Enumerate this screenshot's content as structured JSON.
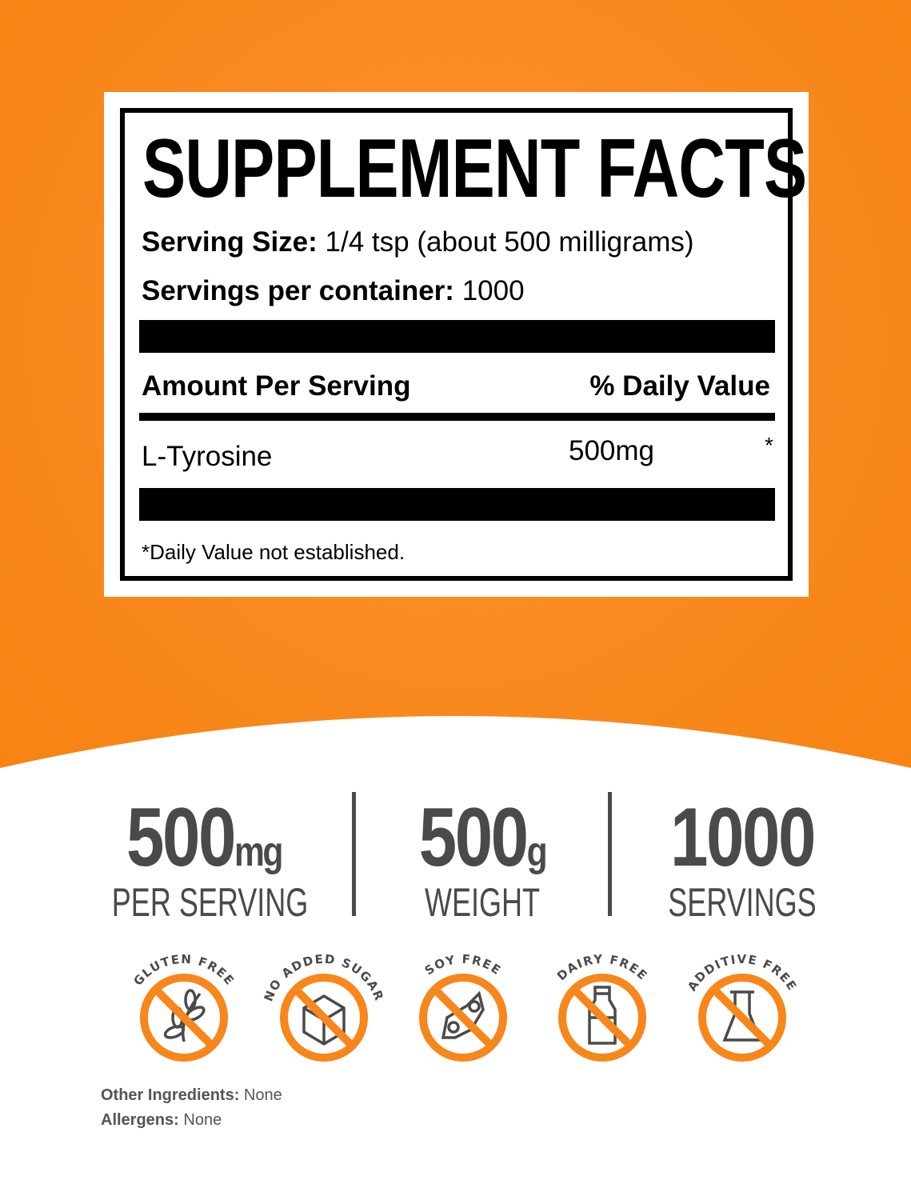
{
  "panel": {
    "title": "SUPPLEMENT FACTS",
    "serving_size_label": "Serving Size:",
    "serving_size_value": "1/4 tsp (about 500 milligrams)",
    "servings_label": "Servings per container:",
    "servings_value": "1000",
    "amount_header": "Amount Per Serving",
    "dv_header": "% Daily Value",
    "ingredient": "L-Tyrosine",
    "ingredient_amount": "500mg",
    "ingredient_dv": "*",
    "footnote": "*Daily Value not established."
  },
  "stats": [
    {
      "number": "500",
      "unit": "mg",
      "label": "PER SERVING"
    },
    {
      "number": "500",
      "unit": "g",
      "label": "WEIGHT"
    },
    {
      "number": "1000",
      "unit": "",
      "label": "SERVINGS"
    }
  ],
  "badges": [
    {
      "text": "GLUTEN FREE",
      "icon": "wheat-icon"
    },
    {
      "text": "NO ADDED SUGAR",
      "icon": "sugar-cube-icon"
    },
    {
      "text": "SOY FREE",
      "icon": "soybean-icon"
    },
    {
      "text": "DAIRY FREE",
      "icon": "milk-bottle-icon"
    },
    {
      "text": "ADDITIVE FREE",
      "icon": "flask-icon"
    }
  ],
  "footer": {
    "other_label": "Other Ingredients:",
    "other_value": "None",
    "allergens_label": "Allergens:",
    "allergens_value": "None"
  },
  "colors": {
    "orange": "#f7861b",
    "gray": "#4a4a4a"
  }
}
